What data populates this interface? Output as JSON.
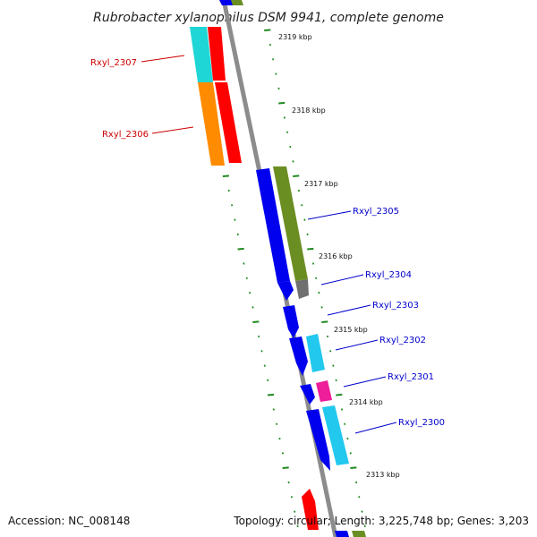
{
  "title": "Rubrobacter xylanophilus DSM 9941, complete genome",
  "footer": {
    "accession": "Accession: NC_008148",
    "summary": "Topology: circular; Length: 3,225,748 bp; Genes: 3,203"
  },
  "kbp_ticks": [
    "2319 kbp",
    "2318 kbp",
    "2317 kbp",
    "2316 kbp",
    "2315 kbp",
    "2314 kbp",
    "2313 kbp"
  ],
  "colors": {
    "backbone": "#8c8c8c",
    "tick": "#1f8a1f",
    "forward_label": "#cc0000",
    "reverse_label": "#0000cc",
    "red": "#ff0000",
    "cyan": "#1fd6d6",
    "orange": "#ff8c00",
    "blue": "#0000ee",
    "olive": "#6b8e23",
    "lightblue": "#22c8ee",
    "magenta": "#ee1d9a",
    "gray": "#707070"
  },
  "gene_labels": [
    {
      "name": "Rxyl_2307",
      "strand": "forward"
    },
    {
      "name": "Rxyl_2306",
      "strand": "forward"
    },
    {
      "name": "Rxyl_2305",
      "strand": "reverse"
    },
    {
      "name": "Rxyl_2304",
      "strand": "reverse"
    },
    {
      "name": "Rxyl_2303",
      "strand": "reverse"
    },
    {
      "name": "Rxyl_2302",
      "strand": "reverse"
    },
    {
      "name": "Rxyl_2301",
      "strand": "reverse"
    },
    {
      "name": "Rxyl_2300",
      "strand": "reverse"
    }
  ]
}
